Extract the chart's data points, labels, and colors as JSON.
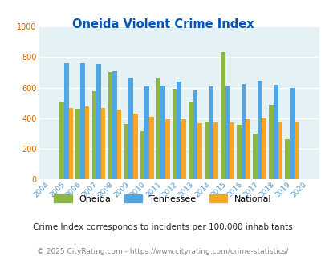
{
  "title": "Oneida Violent Crime Index",
  "years": [
    2004,
    2005,
    2006,
    2007,
    2008,
    2009,
    2010,
    2011,
    2012,
    2013,
    2014,
    2015,
    2016,
    2017,
    2018,
    2019,
    2020
  ],
  "oneida": [
    null,
    510,
    460,
    575,
    700,
    365,
    315,
    660,
    590,
    510,
    380,
    835,
    355,
    300,
    490,
    265,
    null
  ],
  "tennessee": [
    null,
    760,
    760,
    755,
    705,
    665,
    608,
    608,
    638,
    583,
    608,
    608,
    625,
    645,
    620,
    600,
    null
  ],
  "national": [
    null,
    465,
    475,
    465,
    455,
    432,
    408,
    393,
    393,
    370,
    375,
    375,
    395,
    398,
    380,
    380,
    null
  ],
  "oneida_color": "#8db642",
  "tennessee_color": "#4da6e8",
  "national_color": "#f5a623",
  "bg_color": "#e4f1f5",
  "title_color": "#0055bb",
  "ytick_color": "#cc6600",
  "xtick_color": "#5599cc",
  "ylabel_max": 1000,
  "yticks": [
    0,
    200,
    400,
    600,
    800,
    1000
  ],
  "footnote1": "Crime Index corresponds to incidents per 100,000 inhabitants",
  "footnote2": "© 2025 CityRating.com - https://www.cityrating.com/crime-statistics/",
  "legend_labels": [
    "Oneida",
    "Tennessee",
    "National"
  ]
}
